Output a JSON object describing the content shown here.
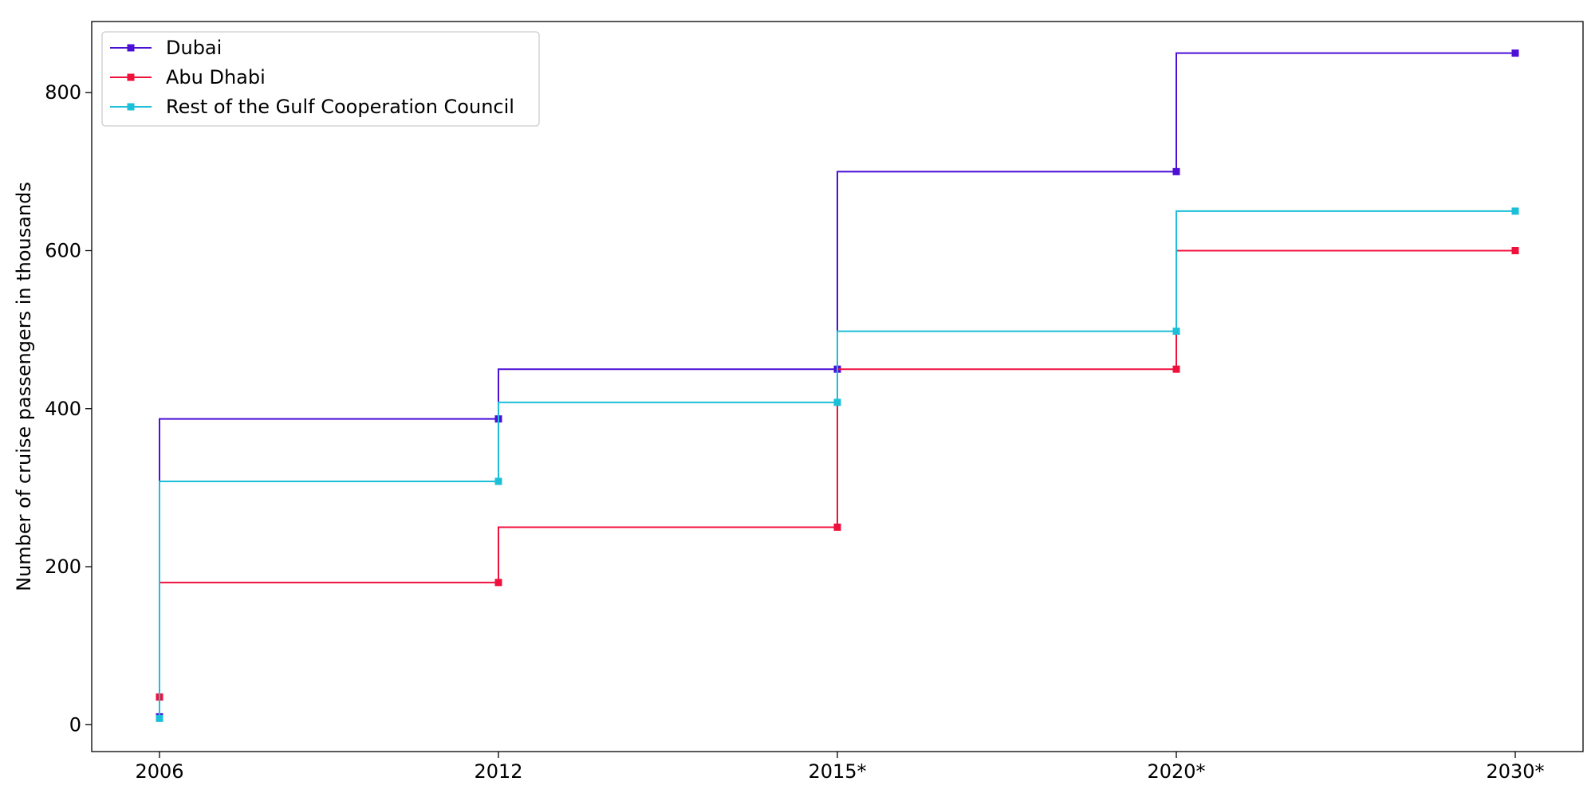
{
  "chart_data": {
    "type": "line",
    "step": "post",
    "title": "",
    "xlabel": "",
    "ylabel": "Number of cruise passengers in thousands",
    "categories": [
      "2006",
      "2012",
      "2015*",
      "2020*",
      "2030*"
    ],
    "ylim": [
      -34,
      890
    ],
    "yticks": [
      0,
      200,
      400,
      600,
      800
    ],
    "grid": false,
    "legend": "top-left",
    "series": [
      {
        "name": "Dubai",
        "color": "#4b0fd6",
        "values": [
          10,
          387,
          450,
          700,
          850
        ]
      },
      {
        "name": "Abu Dhabi",
        "color": "#f0103c",
        "values": [
          35,
          180,
          250,
          450,
          600
        ]
      },
      {
        "name": "Rest of the Gulf Cooperation Council",
        "color": "#1bbfd8",
        "values": [
          8,
          308,
          408,
          498,
          650
        ]
      }
    ]
  }
}
